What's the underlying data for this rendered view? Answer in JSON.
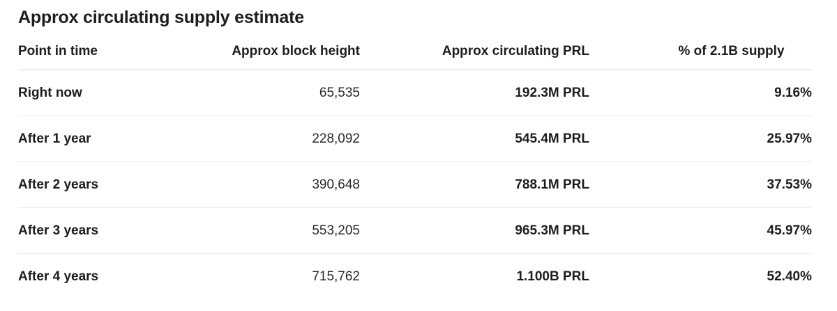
{
  "title": "Approx circulating supply estimate",
  "table": {
    "headers": [
      "Point in time",
      "Approx block height",
      "Approx circulating PRL",
      "% of 2.1B supply"
    ],
    "rows": [
      {
        "point": "Right now",
        "block": "65,535",
        "circulating": "192.3M PRL",
        "percent": "9.16%"
      },
      {
        "point": "After 1 year",
        "block": "228,092",
        "circulating": "545.4M PRL",
        "percent": "25.97%"
      },
      {
        "point": "After 2 years",
        "block": "390,648",
        "circulating": "788.1M PRL",
        "percent": "37.53%"
      },
      {
        "point": "After 3 years",
        "block": "553,205",
        "circulating": "965.3M PRL",
        "percent": "45.97%"
      },
      {
        "point": "After 4 years",
        "block": "715,762",
        "circulating": "1.100B PRL",
        "percent": "52.40%"
      }
    ]
  }
}
